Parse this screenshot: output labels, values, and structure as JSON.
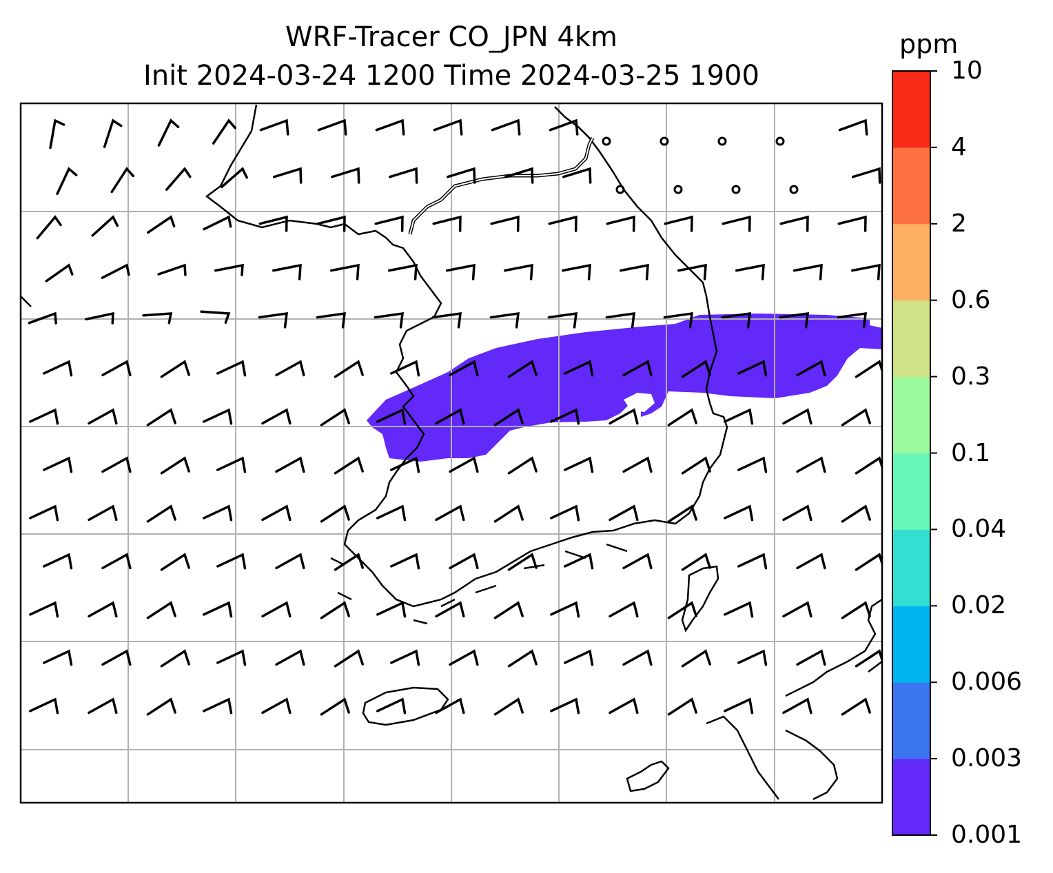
{
  "title": {
    "line1": "WRF-Tracer CO_JPN 4km",
    "line2": "Init 2024-03-24 1200 Time 2024-03-25 1900"
  },
  "colorbar": {
    "unit": "ppm",
    "levels": [
      "0.001",
      "0.003",
      "0.006",
      "0.02",
      "0.04",
      "0.1",
      "0.3",
      "0.6",
      "2",
      "4",
      "10"
    ],
    "colors": [
      "#6229f9",
      "#3a74ee",
      "#00b5ee",
      "#32dfd2",
      "#67f8b8",
      "#9bf99b",
      "#d0e286",
      "#fdb062",
      "#fd7040",
      "#fa2a17"
    ]
  },
  "map": {
    "plume_color": "#6229f9",
    "grid_color": "#b0b0b0",
    "plume_level": "0.001-0.003 ppm"
  }
}
